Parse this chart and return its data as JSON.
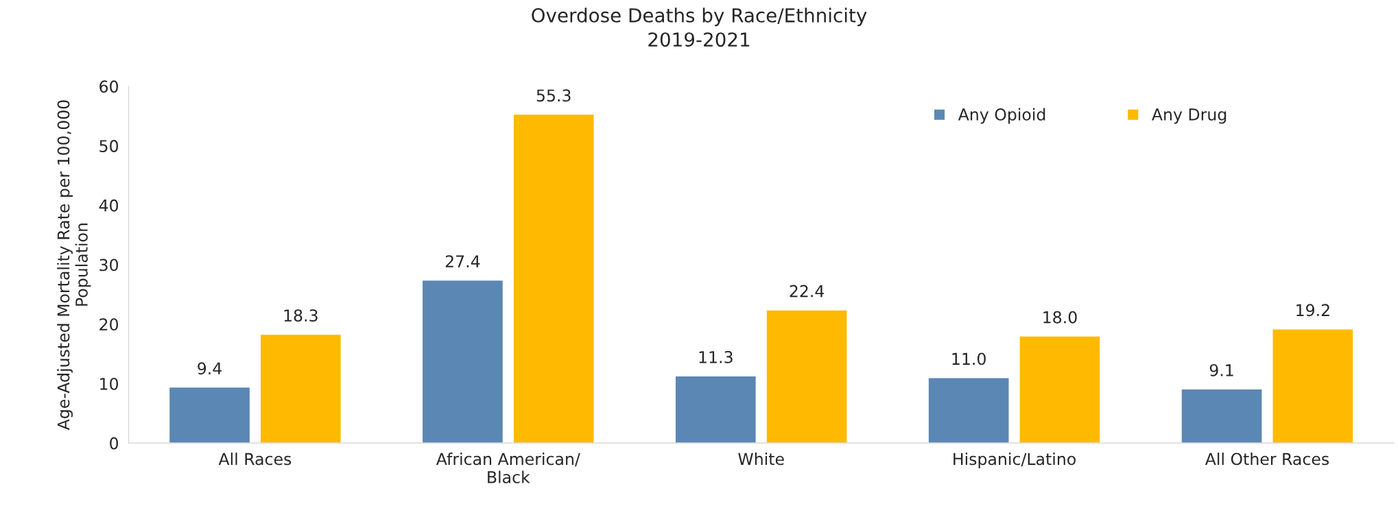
{
  "chart_data": {
    "type": "bar",
    "title": "Overdose Deaths by Race/Ethnicity\n2019-2021",
    "ylabel": "Age-Adjusted Mortality Rate per 100,000\nPopulation",
    "categories": [
      "All Races",
      "African American/\nBlack",
      "White",
      "Hispanic/Latino",
      "All Other Races"
    ],
    "series": [
      {
        "name": "Any Opioid",
        "color": "#5b87b4",
        "values": [
          9.4,
          27.4,
          11.3,
          11.0,
          9.1
        ],
        "value_labels": [
          "9.4",
          "27.4",
          "11.3",
          "11.0",
          "9.1"
        ]
      },
      {
        "name": "Any Drug",
        "color": "#ffba00",
        "values": [
          18.3,
          55.3,
          22.4,
          18.0,
          19.2
        ],
        "value_labels": [
          "18.3",
          "55.3",
          "22.4",
          "18.0",
          "19.2"
        ]
      }
    ],
    "ylim": [
      0,
      60
    ],
    "yticks": [
      0,
      10,
      20,
      30,
      40,
      50,
      60
    ],
    "grid": false,
    "legend": "top right"
  }
}
